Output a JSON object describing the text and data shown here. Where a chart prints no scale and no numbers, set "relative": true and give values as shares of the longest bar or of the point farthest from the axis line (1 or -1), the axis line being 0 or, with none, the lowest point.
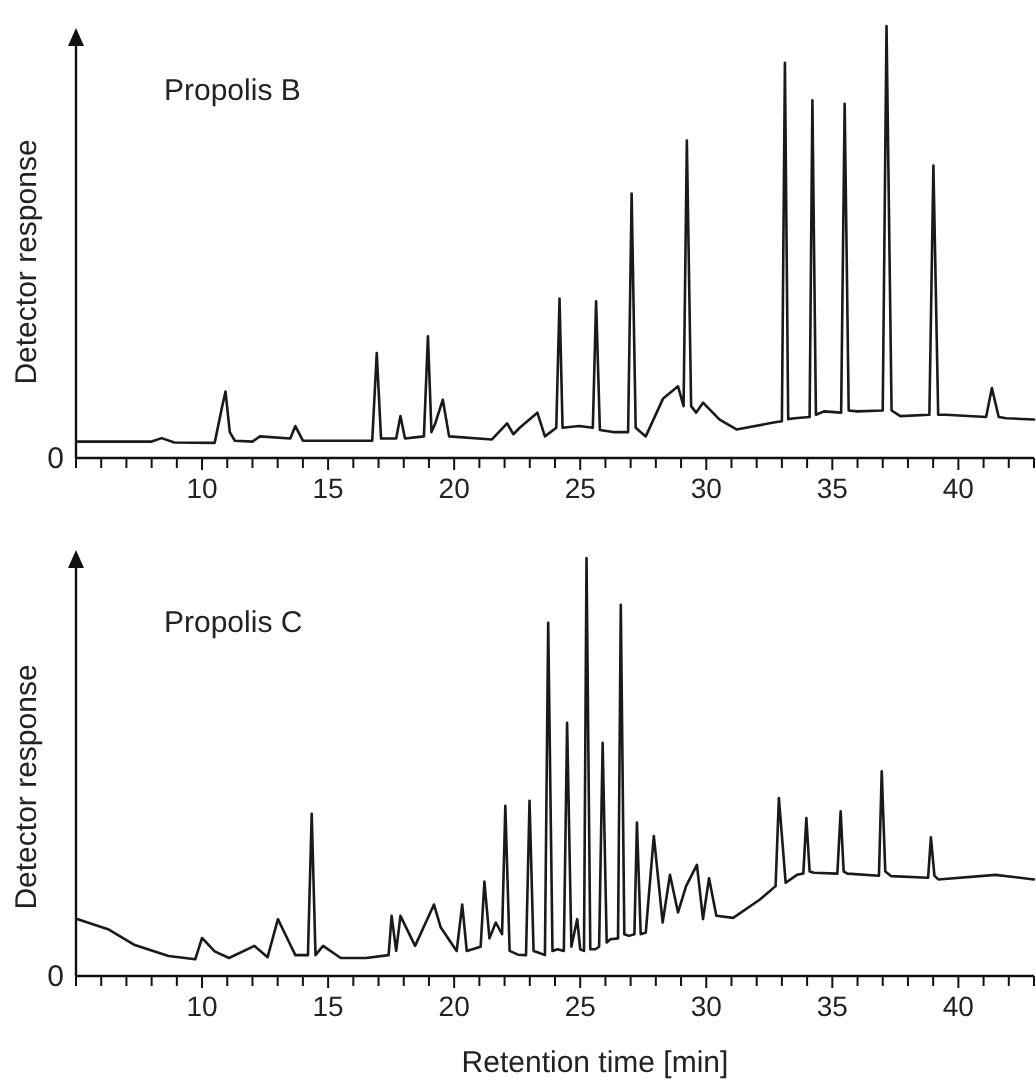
{
  "chart_data": [
    {
      "type": "line",
      "title": "Propolis B",
      "ylabel": "Detector response",
      "relative": true,
      "annotations": [
        "0"
      ],
      "xlim": [
        5,
        43
      ],
      "xticks": [
        {
          "value": 5,
          "label": null
        },
        {
          "value": 6,
          "label": null
        },
        {
          "value": 7,
          "label": null
        },
        {
          "value": 8,
          "label": null
        },
        {
          "value": 9,
          "label": null
        },
        10,
        {
          "value": 11,
          "label": null
        },
        {
          "value": 12,
          "label": null
        },
        {
          "value": 13,
          "label": null
        },
        {
          "value": 14,
          "label": null
        },
        15,
        {
          "value": 16,
          "label": null
        },
        {
          "value": 17,
          "label": null
        },
        {
          "value": 18,
          "label": null
        },
        {
          "value": 19,
          "label": null
        },
        20,
        {
          "value": 21,
          "label": null
        },
        {
          "value": 22,
          "label": null
        },
        {
          "value": 23,
          "label": null
        },
        {
          "value": 24,
          "label": null
        },
        25,
        {
          "value": 26,
          "label": null
        },
        {
          "value": 27,
          "label": null
        },
        {
          "value": 28,
          "label": null
        },
        {
          "value": 29,
          "label": null
        },
        30,
        {
          "value": 31,
          "label": null
        },
        {
          "value": 32,
          "label": null
        },
        {
          "value": 33,
          "label": null
        },
        {
          "value": 34,
          "label": null
        },
        35,
        {
          "value": 36,
          "label": null
        },
        {
          "value": 37,
          "label": null
        },
        {
          "value": 38,
          "label": null
        },
        {
          "value": 39,
          "label": null
        },
        40,
        {
          "value": 41,
          "label": null
        },
        {
          "value": 42,
          "label": null
        },
        {
          "value": 43,
          "label": null
        }
      ],
      "series": [
        {
          "color": "#1a1a1a",
          "x": [
            5.07,
            8.0,
            8.4,
            8.9,
            10.5,
            10.8,
            10.93,
            11.1,
            11.3,
            12.0,
            12.3,
            13.5,
            13.7,
            14.0,
            16.75,
            16.93,
            17.1,
            17.7,
            17.87,
            18.05,
            18.8,
            18.96,
            19.1,
            19.25,
            19.55,
            19.8,
            21.5,
            22.1,
            22.35,
            22.6,
            23.3,
            23.6,
            24.05,
            24.18,
            24.3,
            24.95,
            25.5,
            25.63,
            25.78,
            26.3,
            26.9,
            27.04,
            27.2,
            27.6,
            28.29,
            28.88,
            29.1,
            29.23,
            29.4,
            29.6,
            29.87,
            30.53,
            31.2,
            32.67,
            33.0,
            33.12,
            33.25,
            33.5,
            34.1,
            34.21,
            34.35,
            34.67,
            35.35,
            35.49,
            35.65,
            36.0,
            37.0,
            37.15,
            37.35,
            37.7,
            38.85,
            39.01,
            39.2,
            39.5,
            41.1,
            41.33,
            41.6,
            41.9,
            43.0
          ],
          "values": [
            0.038,
            0.038,
            0.046,
            0.036,
            0.035,
            0.12,
            0.154,
            0.06,
            0.04,
            0.038,
            0.05,
            0.045,
            0.074,
            0.04,
            0.04,
            0.243,
            0.045,
            0.045,
            0.097,
            0.045,
            0.05,
            0.282,
            0.06,
            0.08,
            0.135,
            0.05,
            0.043,
            0.08,
            0.055,
            0.07,
            0.105,
            0.05,
            0.07,
            0.369,
            0.07,
            0.074,
            0.07,
            0.363,
            0.065,
            0.06,
            0.06,
            0.612,
            0.07,
            0.05,
            0.138,
            0.166,
            0.12,
            0.735,
            0.12,
            0.105,
            0.128,
            0.089,
            0.066,
            0.082,
            0.085,
            0.915,
            0.09,
            0.092,
            0.095,
            0.828,
            0.1,
            0.108,
            0.105,
            0.82,
            0.11,
            0.108,
            0.11,
            1,
            0.11,
            0.097,
            0.1,
            0.677,
            0.1,
            0.1,
            0.095,
            0.162,
            0.095,
            0.092,
            0.089
          ]
        }
      ]
    },
    {
      "type": "line",
      "title": "Propolis C",
      "xlabel": "Retention time [min]",
      "ylabel": "Detector response",
      "relative": true,
      "annotations": [
        "0"
      ],
      "xlim": [
        5,
        43
      ],
      "xticks": [
        {
          "value": 5,
          "label": null
        },
        {
          "value": 6,
          "label": null
        },
        {
          "value": 7,
          "label": null
        },
        {
          "value": 8,
          "label": null
        },
        {
          "value": 9,
          "label": null
        },
        10,
        {
          "value": 11,
          "label": null
        },
        {
          "value": 12,
          "label": null
        },
        {
          "value": 13,
          "label": null
        },
        {
          "value": 14,
          "label": null
        },
        15,
        {
          "value": 16,
          "label": null
        },
        {
          "value": 17,
          "label": null
        },
        {
          "value": 18,
          "label": null
        },
        {
          "value": 19,
          "label": null
        },
        20,
        {
          "value": 21,
          "label": null
        },
        {
          "value": 22,
          "label": null
        },
        {
          "value": 23,
          "label": null
        },
        {
          "value": 24,
          "label": null
        },
        25,
        {
          "value": 26,
          "label": null
        },
        {
          "value": 27,
          "label": null
        },
        {
          "value": 28,
          "label": null
        },
        {
          "value": 29,
          "label": null
        },
        30,
        {
          "value": 31,
          "label": null
        },
        {
          "value": 32,
          "label": null
        },
        {
          "value": 33,
          "label": null
        },
        {
          "value": 34,
          "label": null
        },
        35,
        {
          "value": 36,
          "label": null
        },
        {
          "value": 37,
          "label": null
        },
        {
          "value": 38,
          "label": null
        },
        {
          "value": 39,
          "label": null
        },
        40,
        {
          "value": 41,
          "label": null
        },
        {
          "value": 42,
          "label": null
        },
        {
          "value": 43,
          "label": null
        }
      ],
      "series": [
        {
          "color": "#1a1a1a",
          "x": [
            5.07,
            6.27,
            7.3,
            8.67,
            9.73,
            10.0,
            10.5,
            11.07,
            12.08,
            12.6,
            13.01,
            13.3,
            13.7,
            14.2,
            14.35,
            14.5,
            14.8,
            15.5,
            16.5,
            17.4,
            17.52,
            17.7,
            17.87,
            18.45,
            19.2,
            19.47,
            20.1,
            20.32,
            20.5,
            21.05,
            21.2,
            21.4,
            21.65,
            21.9,
            22.03,
            22.2,
            22.53,
            22.85,
            22.99,
            23.15,
            23.33,
            23.6,
            23.73,
            23.9,
            24.1,
            24.35,
            24.48,
            24.65,
            24.88,
            25.0,
            25.15,
            25.25,
            25.4,
            25.6,
            25.75,
            25.89,
            26.05,
            26.2,
            26.5,
            26.61,
            26.75,
            26.93,
            27.15,
            27.25,
            27.4,
            27.6,
            27.92,
            28.27,
            28.56,
            28.88,
            29.2,
            29.63,
            29.87,
            30.11,
            30.4,
            31.07,
            32.13,
            32.75,
            32.88,
            33.15,
            33.6,
            33.85,
            33.97,
            34.1,
            34.27,
            35.2,
            35.33,
            35.45,
            35.6,
            36.85,
            36.96,
            37.1,
            37.33,
            38.8,
            38.91,
            39.05,
            39.2,
            41.47,
            43.0
          ],
          "values": [
            0.136,
            0.112,
            0.075,
            0.048,
            0.04,
            0.091,
            0.059,
            0.043,
            0.072,
            0.045,
            0.136,
            0.1,
            0.05,
            0.05,
            0.388,
            0.05,
            0.072,
            0.043,
            0.043,
            0.05,
            0.144,
            0.06,
            0.144,
            0.072,
            0.171,
            0.116,
            0.06,
            0.171,
            0.06,
            0.07,
            0.226,
            0.09,
            0.128,
            0.1,
            0.407,
            0.06,
            0.051,
            0.05,
            0.419,
            0.06,
            0.056,
            0.05,
            0.845,
            0.06,
            0.064,
            0.06,
            0.606,
            0.07,
            0.136,
            0.064,
            0.06,
            1,
            0.064,
            0.064,
            0.07,
            0.558,
            0.08,
            0.088,
            0.09,
            0.888,
            0.1,
            0.096,
            0.1,
            0.367,
            0.1,
            0.104,
            0.335,
            0.128,
            0.242,
            0.152,
            0.215,
            0.266,
            0.136,
            0.234,
            0.144,
            0.139,
            0.183,
            0.215,
            0.426,
            0.223,
            0.242,
            0.245,
            0.378,
            0.25,
            0.247,
            0.245,
            0.394,
            0.25,
            0.245,
            0.24,
            0.49,
            0.25,
            0.239,
            0.235,
            0.332,
            0.24,
            0.231,
            0.242,
            0.231
          ]
        }
      ]
    }
  ]
}
